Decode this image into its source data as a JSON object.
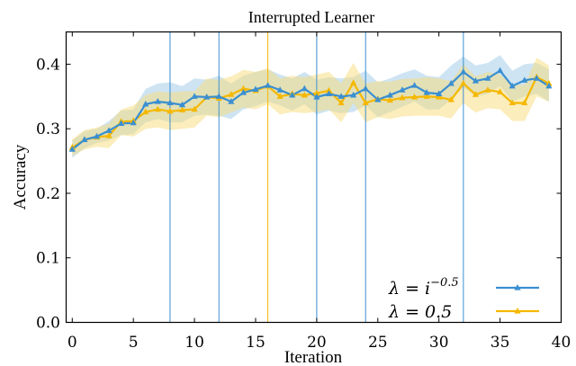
{
  "chart_data": {
    "type": "line",
    "title": "Interrupted Learner",
    "xlabel": "Iteration",
    "ylabel": "Accuracy",
    "xlim": [
      -0.5,
      40
    ],
    "ylim": [
      0.0,
      0.45
    ],
    "xticks": [
      0,
      5,
      10,
      15,
      20,
      25,
      30,
      35,
      40
    ],
    "yticks": [
      0.0,
      0.1,
      0.2,
      0.3,
      0.4
    ],
    "xtick_labels": [
      "0",
      "5",
      "10",
      "15",
      "20",
      "25",
      "30",
      "35",
      "40"
    ],
    "ytick_labels": [
      "0.0",
      "0.1",
      "0.2",
      "0.3",
      "0.4"
    ],
    "x": [
      0,
      1,
      2,
      3,
      4,
      5,
      6,
      7,
      8,
      9,
      10,
      11,
      12,
      13,
      14,
      15,
      16,
      17,
      18,
      19,
      20,
      21,
      22,
      23,
      24,
      25,
      26,
      27,
      28,
      29,
      30,
      31,
      32,
      33,
      34,
      35,
      36,
      37,
      38,
      39
    ],
    "series": [
      {
        "name": "λ = i^−0.5",
        "legend_base": "λ = i",
        "legend_exp": "−0.5",
        "color": "#3a8fd1",
        "band_color": "#9ecae8",
        "marker": "triangle",
        "values": [
          0.268,
          0.283,
          0.288,
          0.297,
          0.308,
          0.309,
          0.338,
          0.342,
          0.34,
          0.337,
          0.35,
          0.349,
          0.35,
          0.342,
          0.356,
          0.361,
          0.367,
          0.36,
          0.352,
          0.362,
          0.349,
          0.354,
          0.35,
          0.352,
          0.362,
          0.345,
          0.352,
          0.36,
          0.367,
          0.356,
          0.354,
          0.37,
          0.388,
          0.374,
          0.378,
          0.39,
          0.366,
          0.375,
          0.378,
          0.366
        ],
        "lower": [
          0.255,
          0.27,
          0.278,
          0.282,
          0.29,
          0.292,
          0.31,
          0.315,
          0.31,
          0.31,
          0.32,
          0.322,
          0.32,
          0.315,
          0.33,
          0.335,
          0.342,
          0.336,
          0.328,
          0.338,
          0.322,
          0.328,
          0.324,
          0.326,
          0.336,
          0.318,
          0.326,
          0.334,
          0.342,
          0.33,
          0.33,
          0.345,
          0.364,
          0.35,
          0.354,
          0.366,
          0.342,
          0.35,
          0.354,
          0.342
        ],
        "upper": [
          0.282,
          0.296,
          0.3,
          0.312,
          0.328,
          0.33,
          0.362,
          0.37,
          0.372,
          0.366,
          0.378,
          0.376,
          0.382,
          0.37,
          0.382,
          0.388,
          0.392,
          0.384,
          0.378,
          0.388,
          0.376,
          0.38,
          0.378,
          0.38,
          0.39,
          0.372,
          0.378,
          0.386,
          0.392,
          0.382,
          0.38,
          0.398,
          0.412,
          0.398,
          0.402,
          0.414,
          0.39,
          0.4,
          0.402,
          0.392
        ],
        "interruptions": [
          8,
          12,
          20,
          24,
          32
        ]
      },
      {
        "name": "λ = 0.5",
        "legend_base": "λ = 0.5",
        "legend_exp": "",
        "color": "#f5b800",
        "band_color": "#f8dc7a",
        "marker": "triangle",
        "values": [
          0.271,
          0.283,
          0.287,
          0.289,
          0.311,
          0.312,
          0.326,
          0.33,
          0.327,
          0.329,
          0.33,
          0.349,
          0.347,
          0.353,
          0.362,
          0.359,
          0.366,
          0.35,
          0.354,
          0.352,
          0.355,
          0.359,
          0.34,
          0.371,
          0.34,
          0.346,
          0.344,
          0.348,
          0.349,
          0.35,
          0.349,
          0.345,
          0.37,
          0.353,
          0.36,
          0.357,
          0.34,
          0.34,
          0.38,
          0.37
        ],
        "lower": [
          0.258,
          0.268,
          0.272,
          0.27,
          0.29,
          0.288,
          0.3,
          0.302,
          0.298,
          0.3,
          0.302,
          0.32,
          0.318,
          0.325,
          0.333,
          0.33,
          0.338,
          0.322,
          0.326,
          0.324,
          0.326,
          0.33,
          0.31,
          0.34,
          0.31,
          0.318,
          0.315,
          0.319,
          0.32,
          0.32,
          0.32,
          0.316,
          0.34,
          0.325,
          0.332,
          0.33,
          0.312,
          0.312,
          0.35,
          0.342
        ],
        "upper": [
          0.284,
          0.298,
          0.302,
          0.308,
          0.33,
          0.336,
          0.352,
          0.358,
          0.356,
          0.358,
          0.358,
          0.378,
          0.376,
          0.381,
          0.391,
          0.388,
          0.394,
          0.378,
          0.382,
          0.38,
          0.384,
          0.388,
          0.37,
          0.402,
          0.37,
          0.374,
          0.373,
          0.377,
          0.378,
          0.38,
          0.378,
          0.374,
          0.4,
          0.381,
          0.388,
          0.384,
          0.368,
          0.368,
          0.41,
          0.398
        ],
        "interruptions": [
          16
        ]
      }
    ],
    "legend_position": "lower-right",
    "grid": false
  }
}
